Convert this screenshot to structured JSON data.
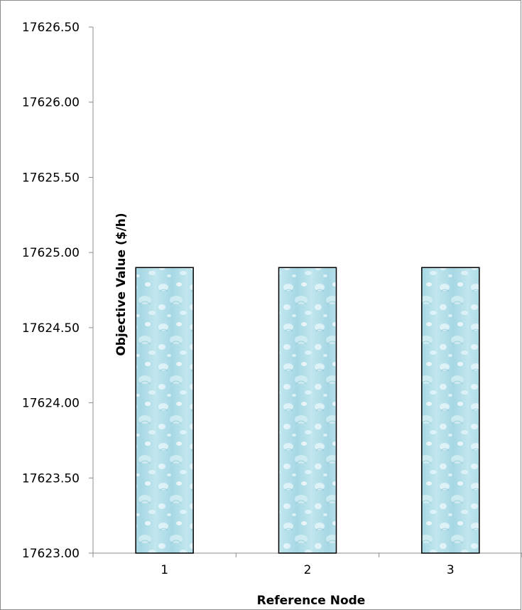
{
  "chart_data": {
    "type": "bar",
    "title": "",
    "xlabel": "Reference Node",
    "ylabel": "Objective Value ($/h)",
    "categories": [
      "1",
      "2",
      "3"
    ],
    "values": [
      17624.9,
      17624.9,
      17624.9
    ],
    "ylim": [
      17623.0,
      17626.5
    ],
    "yticks": [
      "17623.00",
      "17623.50",
      "17624.00",
      "17624.50",
      "17625.00",
      "17625.50",
      "17626.00",
      "17626.50"
    ],
    "grid": false,
    "legend": "none",
    "bar_fill_color": "#9dd3e0",
    "bar_border_color": "#000000"
  }
}
